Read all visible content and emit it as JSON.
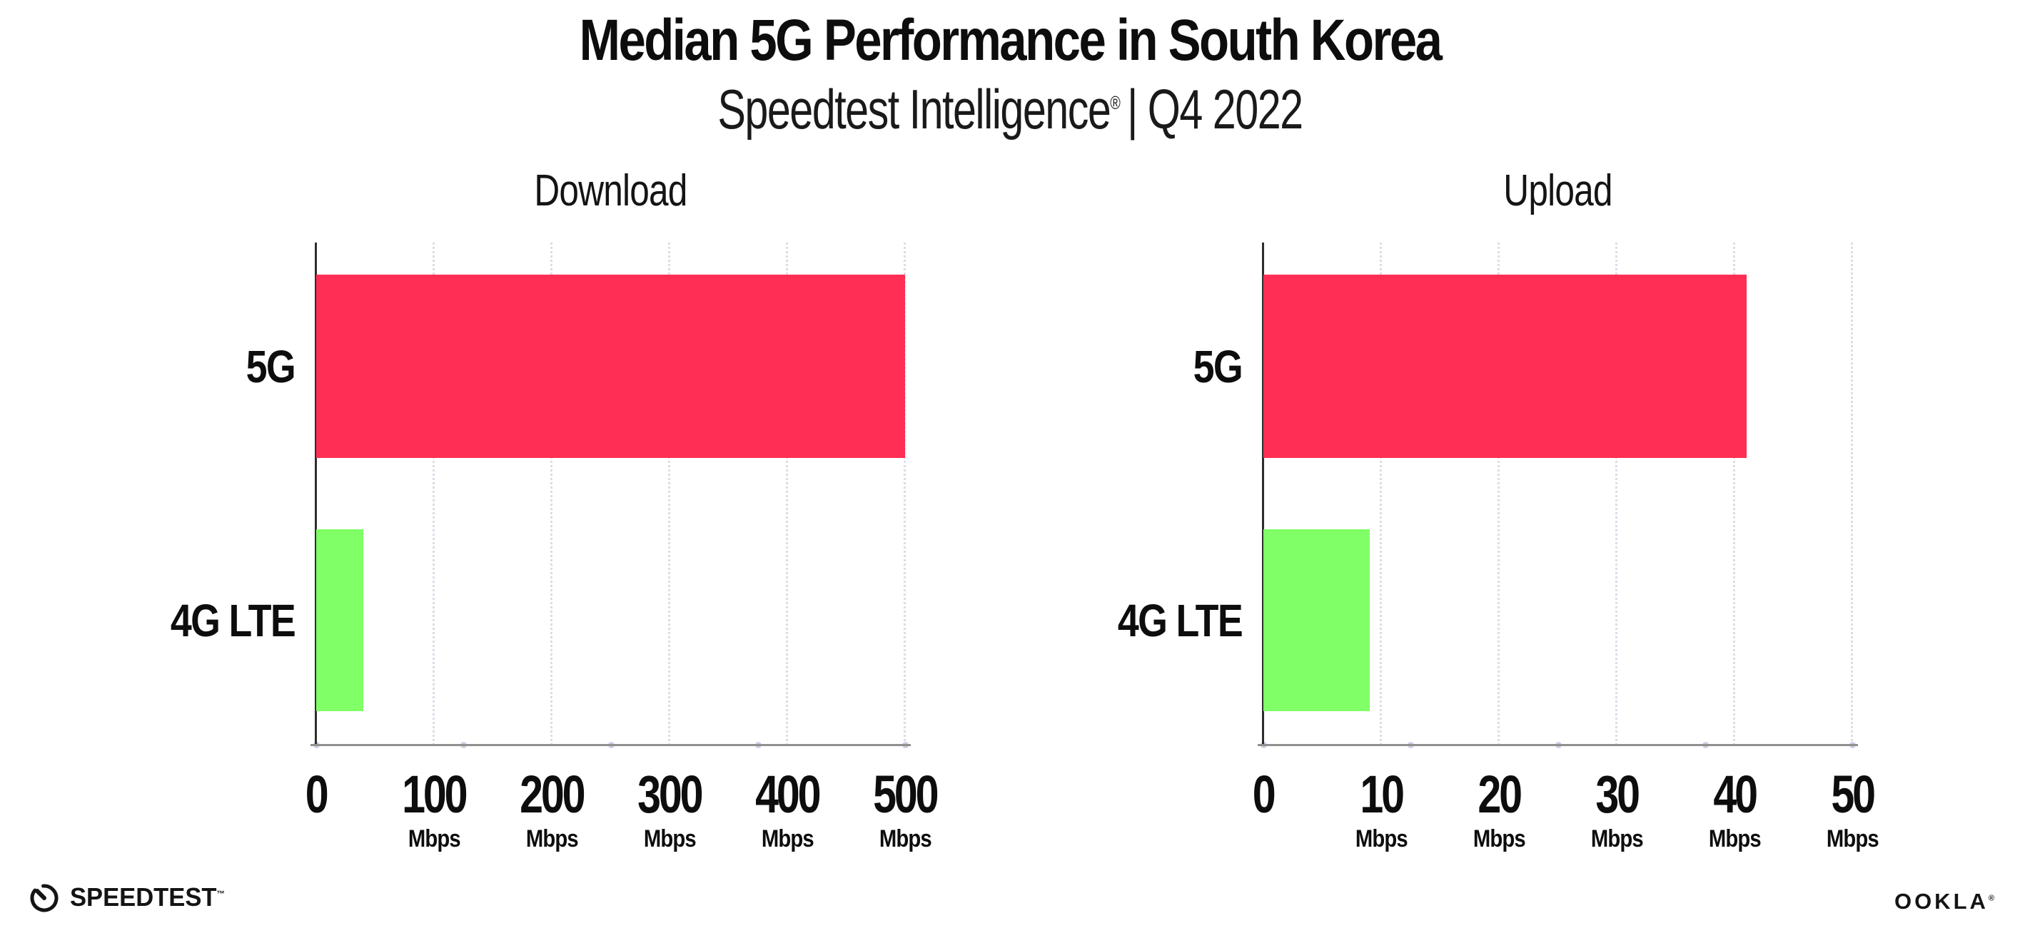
{
  "header": {
    "title": "Median 5G Performance in South Korea",
    "subtitle": {
      "brand": "Speedtest Intelligence",
      "reg": "®",
      "rest": "| Q4 2022"
    }
  },
  "chart_data": [
    {
      "type": "bar",
      "orientation": "horizontal",
      "title": "Download",
      "categories": [
        "5G",
        "4G LTE"
      ],
      "values": [
        500,
        40
      ],
      "unit": "Mbps",
      "xlim": [
        0,
        500
      ],
      "xticks": [
        0,
        100,
        200,
        300,
        400,
        500
      ],
      "xtick_unit": "Mbps",
      "bar_colors": [
        "#FF2E54",
        "#80FF66"
      ],
      "grid": "vertical-dotted",
      "legend": "none"
    },
    {
      "type": "bar",
      "orientation": "horizontal",
      "title": "Upload",
      "categories": [
        "5G",
        "4G LTE"
      ],
      "values": [
        41,
        9
      ],
      "unit": "Mbps",
      "xlim": [
        0,
        50
      ],
      "xticks": [
        0,
        10,
        20,
        30,
        40,
        50
      ],
      "xtick_unit": "Mbps",
      "bar_colors": [
        "#FF2E54",
        "#80FF66"
      ],
      "grid": "vertical-dotted",
      "legend": "none"
    }
  ],
  "footer": {
    "speedtest": {
      "label": "SPEEDTEST",
      "mark": "™",
      "icon": "speedtest-gauge-icon"
    },
    "ookla": {
      "label": "OOKLA",
      "mark": "®"
    }
  },
  "colors": {
    "background": "#FFFFFF",
    "text": "#111111",
    "bar_5g": "#FF2E54",
    "bar_4g_lte": "#80FF66",
    "gridline": "#DCDCE8",
    "axis_x": "#909090",
    "axis_y": "#2E2E2E",
    "minor_dot": "#C9CFE6"
  }
}
